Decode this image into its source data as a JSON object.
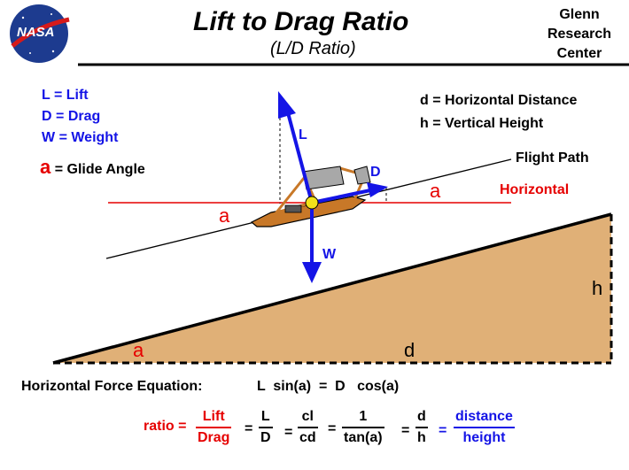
{
  "header": {
    "logo_text": "NASA",
    "title": "Lift to Drag Ratio",
    "subtitle": "(L/D Ratio)",
    "org_lines": [
      "Glenn",
      "Research",
      "Center"
    ]
  },
  "legend_left": [
    {
      "symbol": "L",
      "eq": "=",
      "text": "Lift"
    },
    {
      "symbol": "D",
      "eq": "=",
      "text": "Drag"
    },
    {
      "symbol": "W",
      "eq": "=",
      "text": "Weight"
    }
  ],
  "glide_legend": {
    "symbol": "a",
    "text": "= Glide  Angle"
  },
  "legend_right": [
    {
      "symbol": "d",
      "text": "=  Horizontal Distance"
    },
    {
      "symbol": "h",
      "text": "=  Vertical Height"
    }
  ],
  "labels": {
    "flight_path": "Flight Path",
    "horizontal": "Horizontal",
    "angle": "a",
    "lift": "L",
    "drag": "D",
    "weight": "W",
    "height": "h",
    "distance": "d"
  },
  "equation": {
    "label": "Horizontal Force Equation:",
    "formula": "L  sin(a)  =  D   cos(a)"
  },
  "ratio": {
    "label": "ratio",
    "eq": "=",
    "f1_num": "Lift",
    "f1_den": "Drag",
    "f2_num": "L",
    "f2_den": "D",
    "f3_num": "cl",
    "f3_den": "cd",
    "f4_num": "1",
    "f4_den": "tan(a)",
    "f5_num": "d",
    "f5_den": "h",
    "f6_num": "distance",
    "f6_den": "height"
  },
  "colors": {
    "blue": "#1414e6",
    "red": "#e60000",
    "ground": "#e0b077",
    "glider": "#c87828"
  }
}
